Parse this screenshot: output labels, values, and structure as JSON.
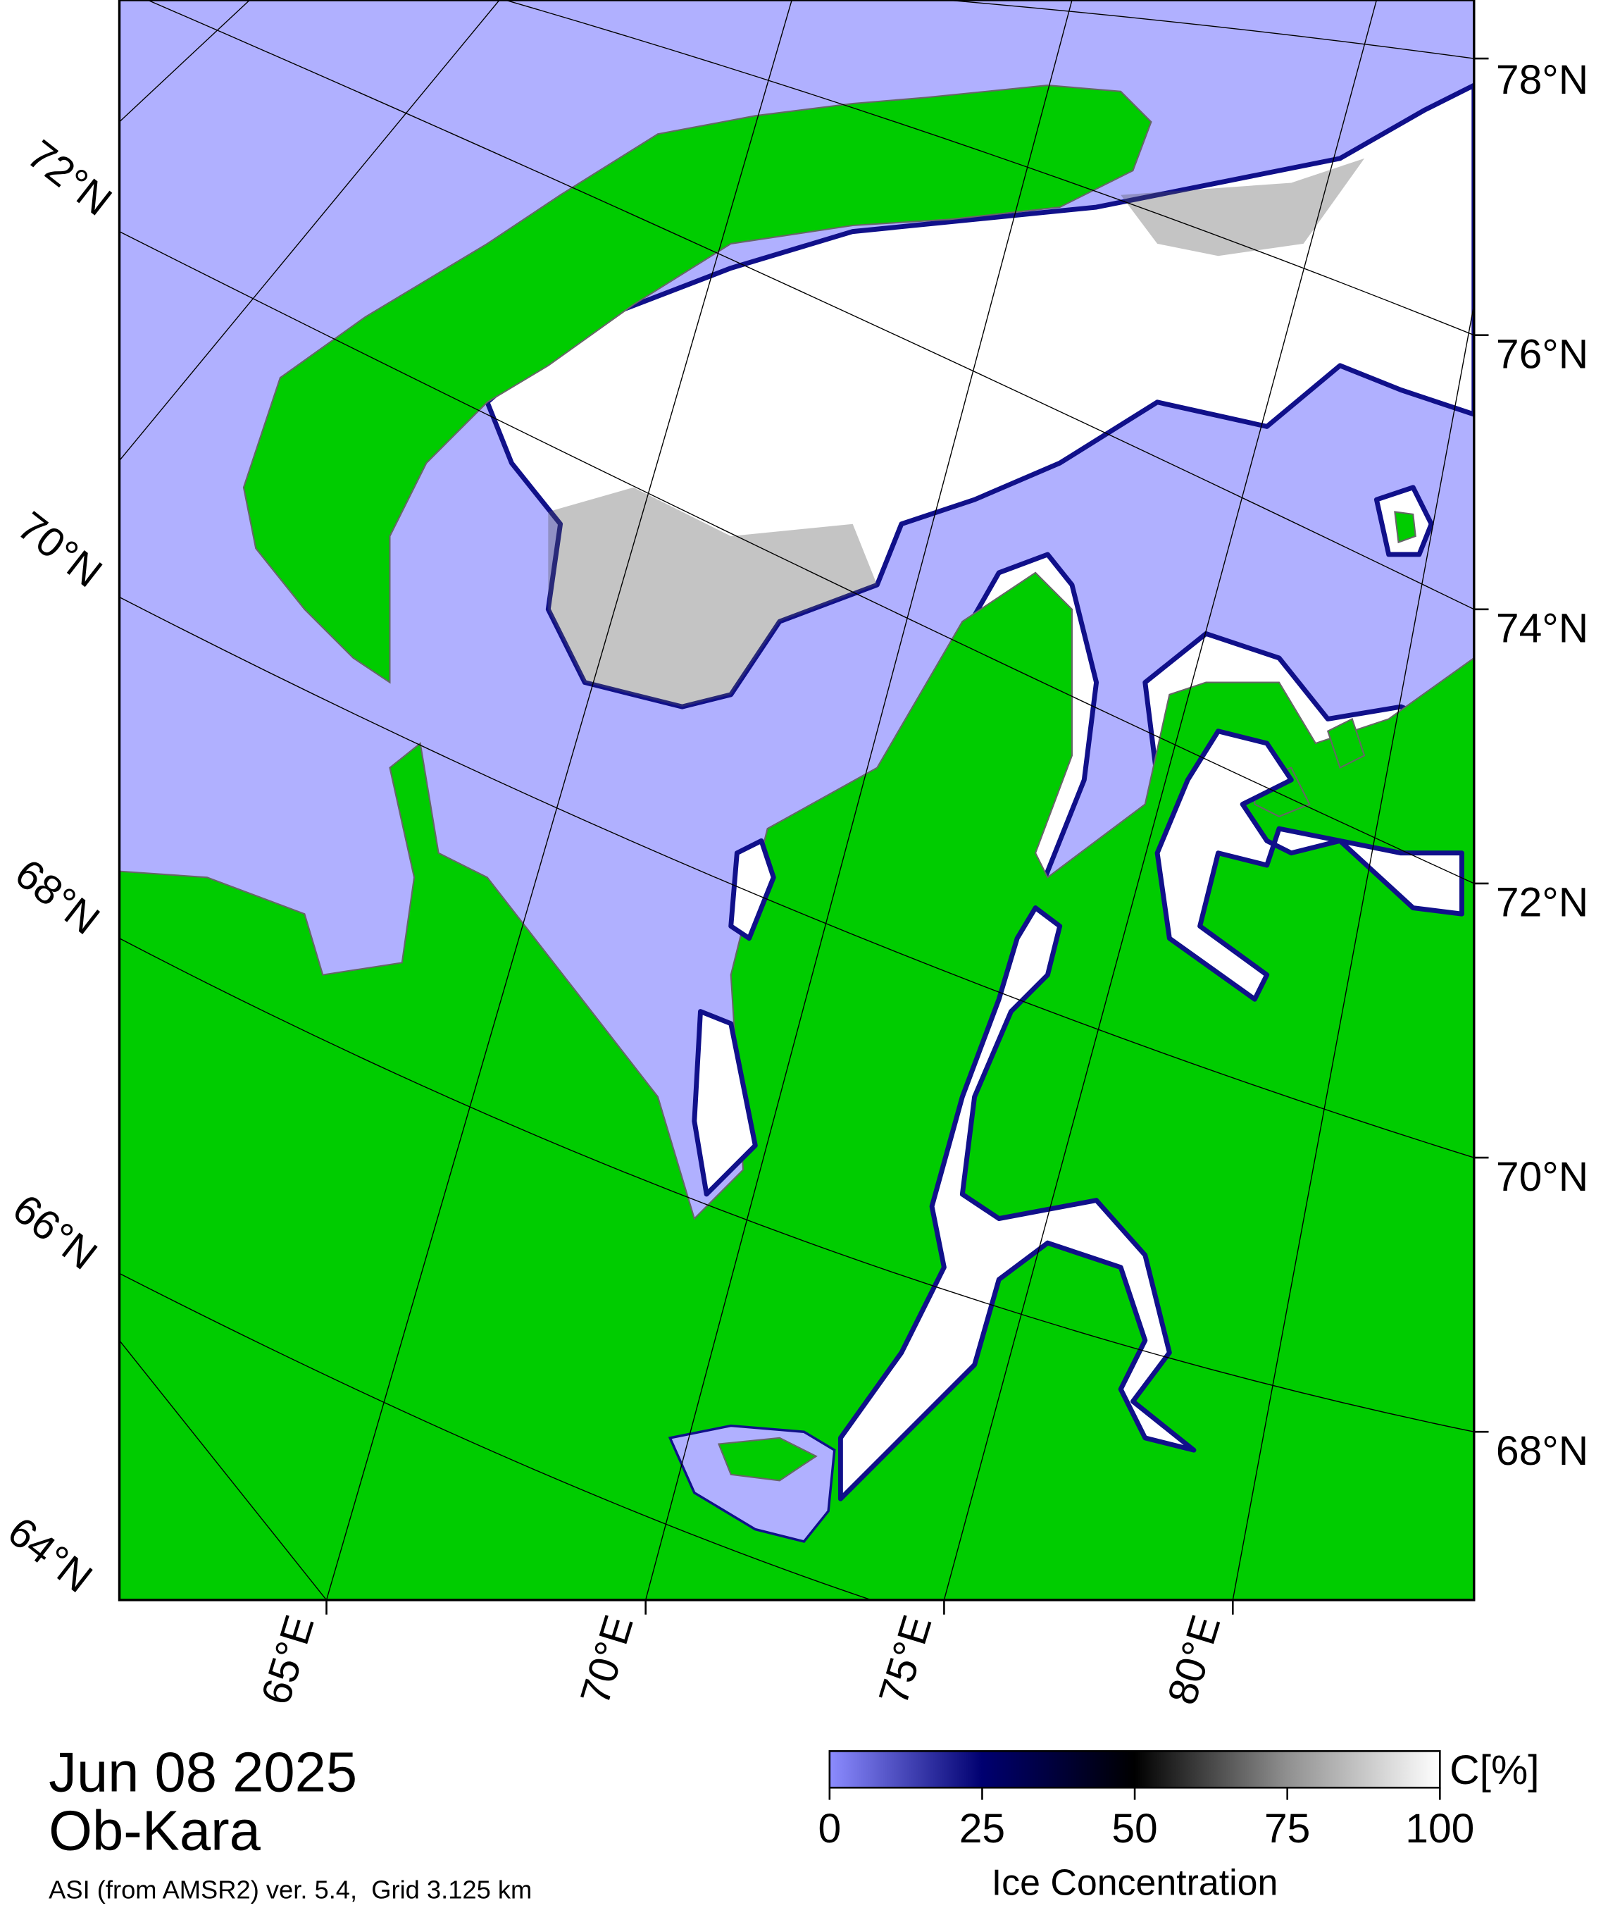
{
  "map": {
    "lat_labels_right": [
      "78°N",
      "76°N",
      "74°N",
      "72°N",
      "70°N",
      "68°N"
    ],
    "lat_labels_left": [
      "72°N",
      "70°N",
      "68°N",
      "66°N",
      "64°N"
    ],
    "lon_labels": [
      "65°E",
      "70°E",
      "75°E",
      "80°E"
    ]
  },
  "caption": {
    "date": "Jun 08 2025",
    "region": "Ob-Kara",
    "source": "ASI (from AMSR2) ver. 5.4,  Grid 3.125 km"
  },
  "colorbar": {
    "lim": [
      0,
      100
    ],
    "ticks": [
      0,
      25,
      50,
      75,
      100
    ],
    "unit": "C[%]",
    "label": "Ice Concentration"
  }
}
